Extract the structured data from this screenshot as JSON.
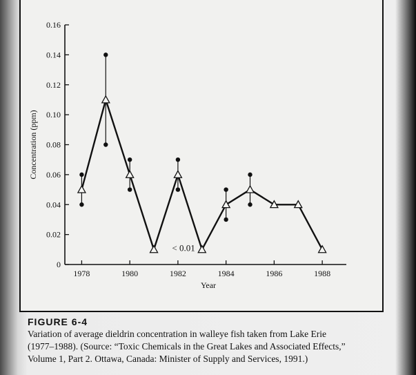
{
  "figure": {
    "label": "FIGURE 6-4",
    "caption_lines": [
      "Variation of average dieldrin concentration in walleye fish taken from Lake Erie",
      "(1977–1988). (Source: “Toxic Chemicals in the Great Lakes and Associated Effects,”",
      "Volume 1, Part 2. Ottawa, Canada: Minister of Supply and Services, 1991.)"
    ]
  },
  "chart_data": {
    "type": "line",
    "title": "",
    "xlabel": "Year",
    "ylabel": "Concentration (ppm)",
    "xlim": [
      1977.3,
      1989
    ],
    "ylim": [
      0,
      0.16
    ],
    "x_ticks": [
      1978,
      1980,
      1982,
      1984,
      1986,
      1988
    ],
    "y_ticks": [
      0,
      0.02,
      0.04,
      0.06,
      0.08,
      0.1,
      0.12,
      0.14,
      0.16
    ],
    "y_tick_labels": [
      "0",
      "0.02",
      "0.04",
      "0.06",
      "0.08",
      "0.10",
      "0.12",
      "0.14",
      "0.16"
    ],
    "grid": false,
    "series": [
      {
        "x": [
          1978,
          1979,
          1980,
          1981,
          1982,
          1983,
          1984,
          1985,
          1986,
          1987,
          1988
        ],
        "y": [
          0.05,
          0.11,
          0.06,
          0.01,
          0.06,
          0.01,
          0.04,
          0.05,
          0.04,
          0.04,
          0.01
        ],
        "marker": "open-triangle",
        "color": "#111111"
      }
    ],
    "ranges": [
      {
        "x": 1978,
        "low": 0.04,
        "high": 0.06
      },
      {
        "x": 1979,
        "low": 0.08,
        "high": 0.14
      },
      {
        "x": 1980,
        "low": 0.05,
        "high": 0.07
      },
      {
        "x": 1982,
        "low": 0.05,
        "high": 0.07
      },
      {
        "x": 1984,
        "low": 0.03,
        "high": 0.05
      },
      {
        "x": 1985,
        "low": 0.04,
        "high": 0.06
      }
    ],
    "annotations": [
      {
        "text": "< 0.01",
        "x": 1983,
        "y": 0.01
      }
    ]
  }
}
